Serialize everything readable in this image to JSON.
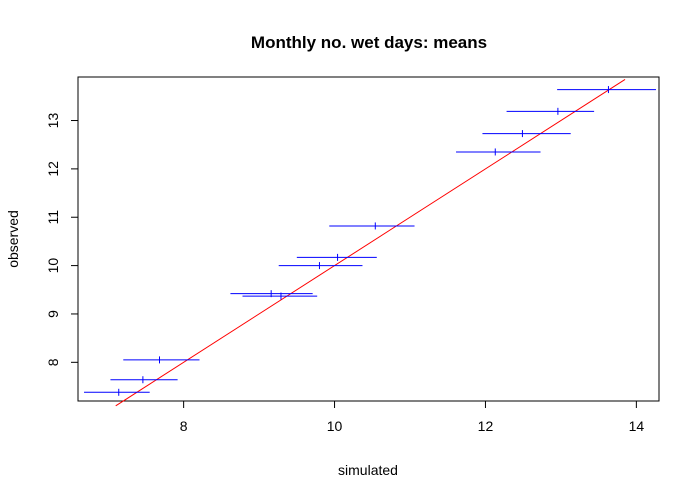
{
  "chart_data": {
    "type": "scatter",
    "title": "Monthly no. wet days: means",
    "xlabel": "simulated",
    "ylabel": "observed",
    "xlim": [
      6.6,
      14.3
    ],
    "ylim": [
      7.2,
      13.9
    ],
    "xticks": [
      8,
      10,
      12,
      14
    ],
    "yticks": [
      8,
      9,
      10,
      11,
      12,
      13
    ],
    "grid": false,
    "points": [
      {
        "x": 7.14,
        "y": 7.38,
        "xmin": 6.68,
        "xmax": 7.55
      },
      {
        "x": 7.46,
        "y": 7.64,
        "xmin": 7.03,
        "xmax": 7.92
      },
      {
        "x": 7.68,
        "y": 8.05,
        "xmin": 7.2,
        "xmax": 8.21
      },
      {
        "x": 9.16,
        "y": 9.42,
        "xmin": 8.62,
        "xmax": 9.71
      },
      {
        "x": 9.29,
        "y": 9.37,
        "xmin": 8.78,
        "xmax": 9.77
      },
      {
        "x": 9.8,
        "y": 10.0,
        "xmin": 9.26,
        "xmax": 10.37
      },
      {
        "x": 10.04,
        "y": 10.17,
        "xmin": 9.5,
        "xmax": 10.56
      },
      {
        "x": 10.54,
        "y": 10.82,
        "xmin": 9.93,
        "xmax": 11.06
      },
      {
        "x": 12.13,
        "y": 12.35,
        "xmin": 11.61,
        "xmax": 12.73
      },
      {
        "x": 12.49,
        "y": 12.73,
        "xmin": 11.96,
        "xmax": 13.13
      },
      {
        "x": 12.96,
        "y": 13.19,
        "xmin": 12.28,
        "xmax": 13.44
      },
      {
        "x": 13.63,
        "y": 13.64,
        "xmin": 12.95,
        "xmax": 14.26
      }
    ],
    "reference_line": {
      "x": [
        7.1,
        13.85
      ],
      "y": [
        7.1,
        13.85
      ]
    },
    "colors": {
      "points": "#0000ff",
      "line": "#ff0000",
      "axes": "#000000"
    }
  }
}
